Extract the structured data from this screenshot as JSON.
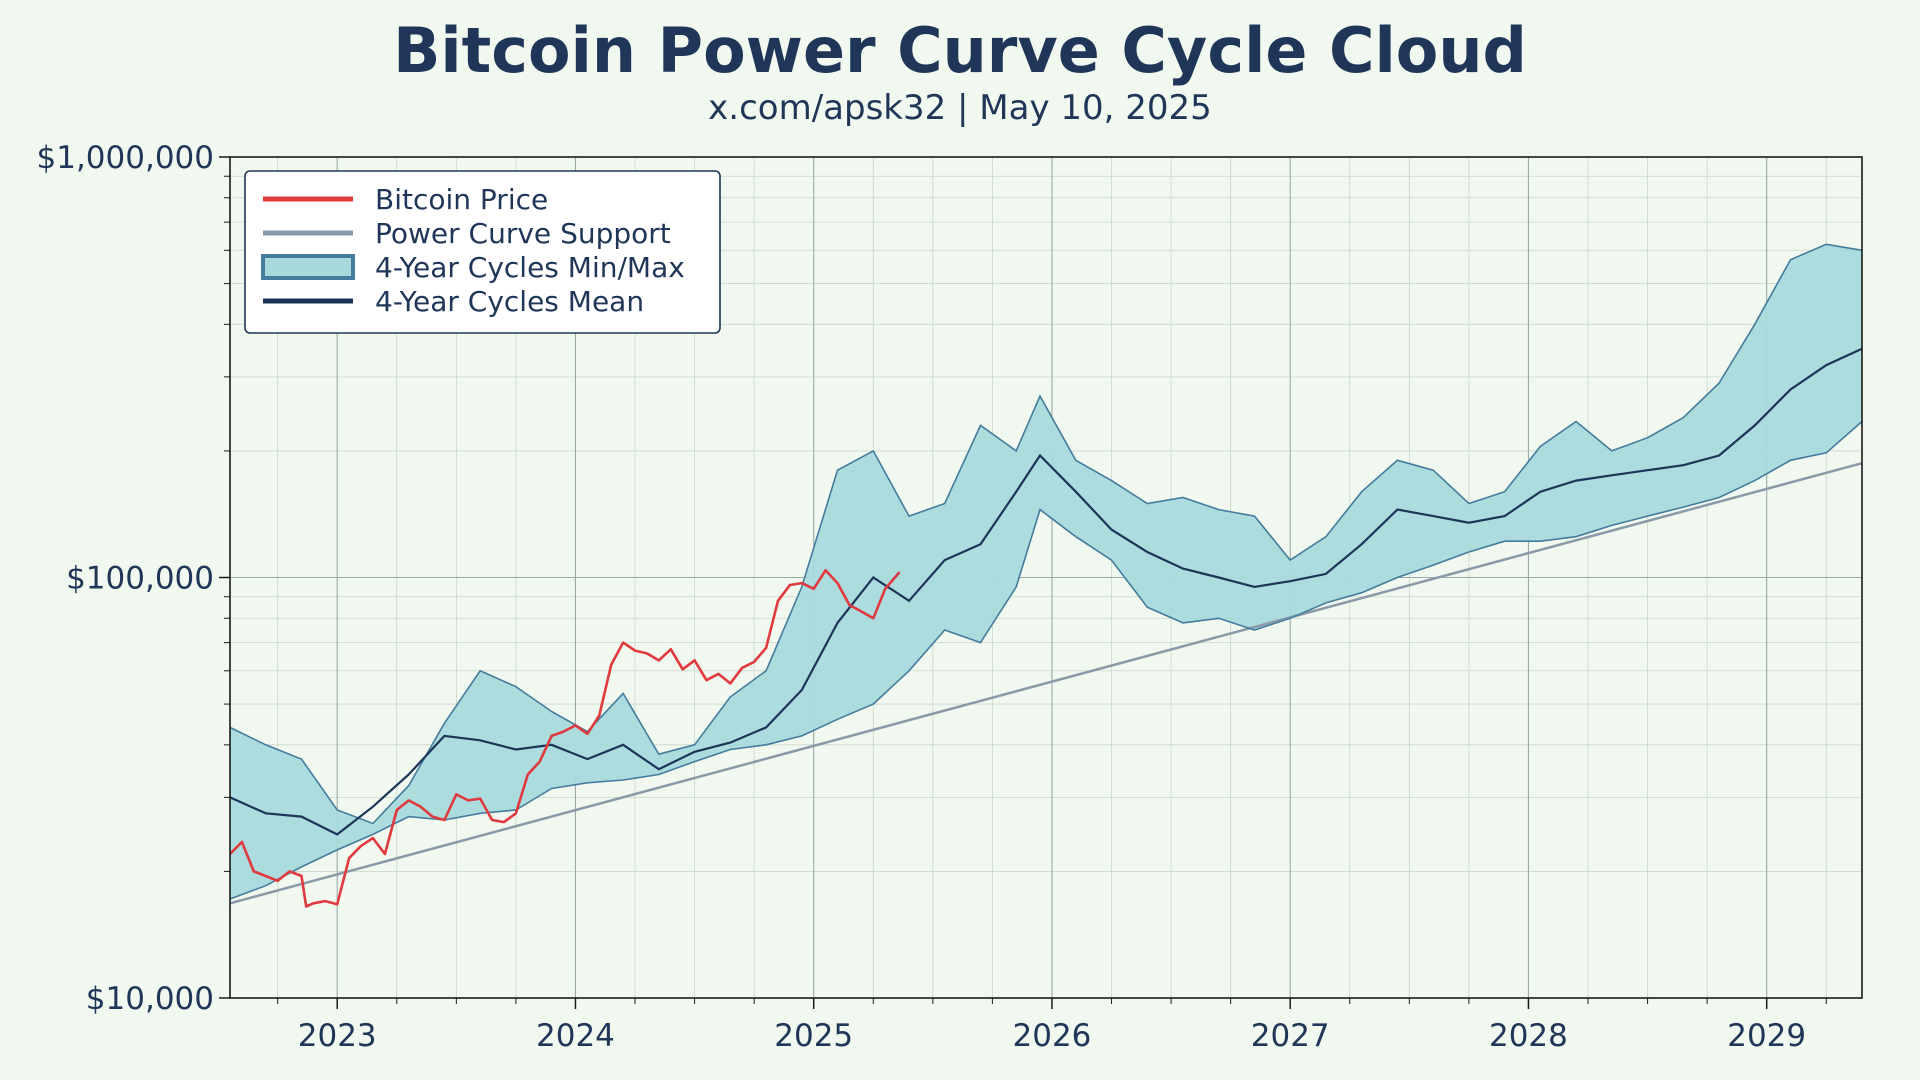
{
  "chart_data": {
    "type": "line",
    "title": "Bitcoin Power Curve Cycle Cloud",
    "subtitle": "x.com/apsk32 | May 10, 2025",
    "yscale": "log",
    "ylim": [
      10000,
      1000000
    ],
    "yticks": [
      {
        "value": 10000,
        "label": "$10,000"
      },
      {
        "value": 100000,
        "label": "$100,000"
      },
      {
        "value": 1000000,
        "label": "$1,000,000"
      }
    ],
    "xlim": [
      2022.55,
      2029.4
    ],
    "xticks": [
      {
        "value": 2023,
        "label": "2023"
      },
      {
        "value": 2024,
        "label": "2024"
      },
      {
        "value": 2025,
        "label": "2025"
      },
      {
        "value": 2026,
        "label": "2026"
      },
      {
        "value": 2027,
        "label": "2027"
      },
      {
        "value": 2028,
        "label": "2028"
      },
      {
        "value": 2029,
        "label": "2029"
      }
    ],
    "grid": true,
    "legend_position": "top-left",
    "legend": [
      {
        "label": "Bitcoin Price",
        "kind": "line",
        "color": "#e0393e"
      },
      {
        "label": "Power Curve Support",
        "kind": "line",
        "color": "#8a9aa8"
      },
      {
        "label": "4-Year Cycles Min/Max",
        "kind": "band",
        "color": "#a8dadc",
        "edge": "#457b9d"
      },
      {
        "label": "4-Year Cycles Mean",
        "kind": "line",
        "color": "#1d3557"
      }
    ],
    "series": [
      {
        "name": "Bitcoin Price",
        "color": "#e0393e",
        "x": [
          2022.55,
          2022.6,
          2022.65,
          2022.7,
          2022.75,
          2022.8,
          2022.85,
          2022.87,
          2022.9,
          2022.95,
          2023.0,
          2023.05,
          2023.1,
          2023.15,
          2023.2,
          2023.25,
          2023.3,
          2023.35,
          2023.4,
          2023.45,
          2023.5,
          2023.55,
          2023.6,
          2023.65,
          2023.7,
          2023.75,
          2023.8,
          2023.85,
          2023.9,
          2023.95,
          2024.0,
          2024.05,
          2024.1,
          2024.15,
          2024.2,
          2024.25,
          2024.3,
          2024.35,
          2024.4,
          2024.45,
          2024.5,
          2024.55,
          2024.6,
          2024.65,
          2024.7,
          2024.75,
          2024.8,
          2024.85,
          2024.9,
          2024.95,
          2025.0,
          2025.05,
          2025.1,
          2025.15,
          2025.2,
          2025.25,
          2025.3,
          2025.36
        ],
        "values": [
          22000,
          23500,
          20000,
          19500,
          19000,
          20000,
          19500,
          16500,
          16800,
          17000,
          16700,
          21500,
          23000,
          24000,
          22000,
          28000,
          29500,
          28500,
          27000,
          26500,
          30500,
          29500,
          29800,
          26500,
          26200,
          27500,
          34000,
          36500,
          42000,
          43000,
          44500,
          42500,
          47000,
          62000,
          70000,
          67000,
          66000,
          63500,
          67500,
          60500,
          63500,
          57000,
          59000,
          56000,
          61000,
          63000,
          68000,
          88000,
          96000,
          97000,
          94000,
          104000,
          97000,
          86000,
          83000,
          80000,
          94000,
          103000
        ]
      },
      {
        "name": "Power Curve Support",
        "color": "#8a9aa8",
        "x": [
          2022.55,
          2029.4
        ],
        "values": [
          16800,
          187000
        ]
      },
      {
        "name": "4-Year Cycles Max",
        "color": "#457b9d",
        "x": [
          2022.55,
          2022.7,
          2022.85,
          2023.0,
          2023.15,
          2023.3,
          2023.45,
          2023.6,
          2023.75,
          2023.9,
          2024.05,
          2024.2,
          2024.35,
          2024.5,
          2024.65,
          2024.8,
          2024.95,
          2025.1,
          2025.25,
          2025.4,
          2025.55,
          2025.7,
          2025.85,
          2025.95,
          2026.1,
          2026.25,
          2026.4,
          2026.55,
          2026.7,
          2026.85,
          2027.0,
          2027.15,
          2027.3,
          2027.45,
          2027.6,
          2027.75,
          2027.9,
          2028.05,
          2028.2,
          2028.35,
          2028.5,
          2028.65,
          2028.8,
          2028.95,
          2029.1,
          2029.25,
          2029.4
        ],
        "values": [
          44000,
          40000,
          37000,
          28000,
          26000,
          32000,
          45000,
          60000,
          55000,
          48000,
          43000,
          53000,
          38000,
          40000,
          52000,
          60000,
          95000,
          180000,
          200000,
          140000,
          150000,
          230000,
          200000,
          270000,
          190000,
          170000,
          150000,
          155000,
          145000,
          140000,
          110000,
          125000,
          160000,
          190000,
          180000,
          150000,
          160000,
          205000,
          235000,
          200000,
          215000,
          240000,
          290000,
          400000,
          570000,
          620000,
          600000
        ]
      },
      {
        "name": "4-Year Cycles Min",
        "color": "#457b9d",
        "x": [
          2022.55,
          2022.7,
          2022.85,
          2023.0,
          2023.15,
          2023.3,
          2023.45,
          2023.6,
          2023.75,
          2023.9,
          2024.05,
          2024.2,
          2024.35,
          2024.5,
          2024.65,
          2024.8,
          2024.95,
          2025.1,
          2025.25,
          2025.4,
          2025.55,
          2025.7,
          2025.85,
          2025.95,
          2026.1,
          2026.25,
          2026.4,
          2026.55,
          2026.7,
          2026.85,
          2027.0,
          2027.15,
          2027.3,
          2027.45,
          2027.6,
          2027.75,
          2027.9,
          2028.05,
          2028.2,
          2028.35,
          2028.5,
          2028.65,
          2028.8,
          2028.95,
          2029.1,
          2029.25,
          2029.4
        ],
        "values": [
          17200,
          18500,
          20500,
          22500,
          24500,
          27000,
          26500,
          27500,
          28000,
          31500,
          32500,
          33000,
          34000,
          36500,
          39000,
          40000,
          42000,
          46000,
          50000,
          60000,
          75000,
          70000,
          95000,
          145000,
          125000,
          110000,
          85000,
          78000,
          80000,
          75000,
          80000,
          87000,
          92000,
          100000,
          107000,
          115000,
          122000,
          122000,
          125000,
          133000,
          140000,
          147000,
          155000,
          170000,
          190000,
          198000,
          235000
        ]
      },
      {
        "name": "4-Year Cycles Mean",
        "color": "#1d3557",
        "x": [
          2022.55,
          2022.7,
          2022.85,
          2023.0,
          2023.15,
          2023.3,
          2023.45,
          2023.6,
          2023.75,
          2023.9,
          2024.05,
          2024.2,
          2024.35,
          2024.5,
          2024.65,
          2024.8,
          2024.95,
          2025.1,
          2025.25,
          2025.4,
          2025.55,
          2025.7,
          2025.85,
          2025.95,
          2026.1,
          2026.25,
          2026.4,
          2026.55,
          2026.7,
          2026.85,
          2027.0,
          2027.15,
          2027.3,
          2027.45,
          2027.6,
          2027.75,
          2027.9,
          2028.05,
          2028.2,
          2028.35,
          2028.5,
          2028.65,
          2028.8,
          2028.95,
          2029.1,
          2029.25,
          2029.4
        ],
        "values": [
          30000,
          27500,
          27000,
          24500,
          28500,
          34000,
          42000,
          41000,
          39000,
          40000,
          37000,
          40000,
          35000,
          38500,
          40500,
          44000,
          54000,
          78000,
          100000,
          88000,
          110000,
          120000,
          160000,
          195000,
          160000,
          130000,
          115000,
          105000,
          100000,
          95000,
          98000,
          102000,
          120000,
          145000,
          140000,
          135000,
          140000,
          160000,
          170000,
          175000,
          180000,
          185000,
          195000,
          230000,
          280000,
          320000,
          350000
        ]
      }
    ]
  }
}
